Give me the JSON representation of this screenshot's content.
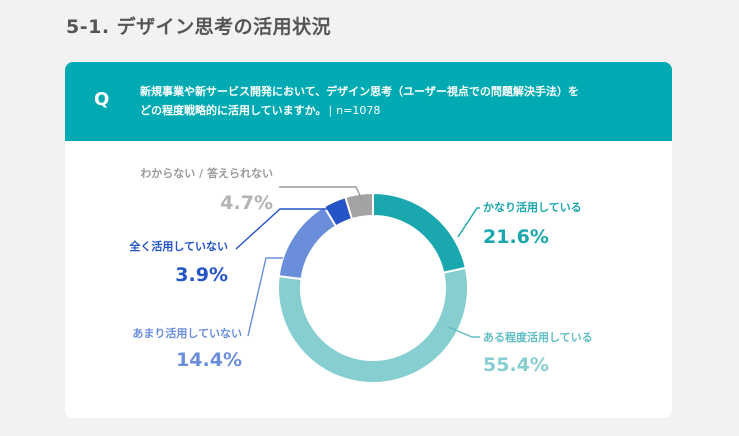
{
  "section_title": "5-1. デザイン思考の活用状況",
  "question": {
    "mark": "Q",
    "line1": "新規事業や新サービス開発において、デザイン思考（ユーザー視点での問題解決手法）を",
    "line2": "どの程度戦略的に活用していますか。",
    "sep": "|",
    "n": "n=1078"
  },
  "chart_data": {
    "type": "pie",
    "donut": true,
    "categories": [
      "かなり活用している",
      "ある程度活用している",
      "あまり活用していない",
      "全く活用していない",
      "わからない / 答えられない"
    ],
    "values": [
      21.6,
      55.4,
      14.4,
      3.9,
      4.7
    ],
    "value_labels": [
      "21.6%",
      "55.4%",
      "14.4%",
      "3.9%",
      "4.7%"
    ],
    "colors": [
      "#1aa7ad",
      "#86ced0",
      "#6b8edb",
      "#2554c7",
      "#a3a3a3"
    ]
  }
}
